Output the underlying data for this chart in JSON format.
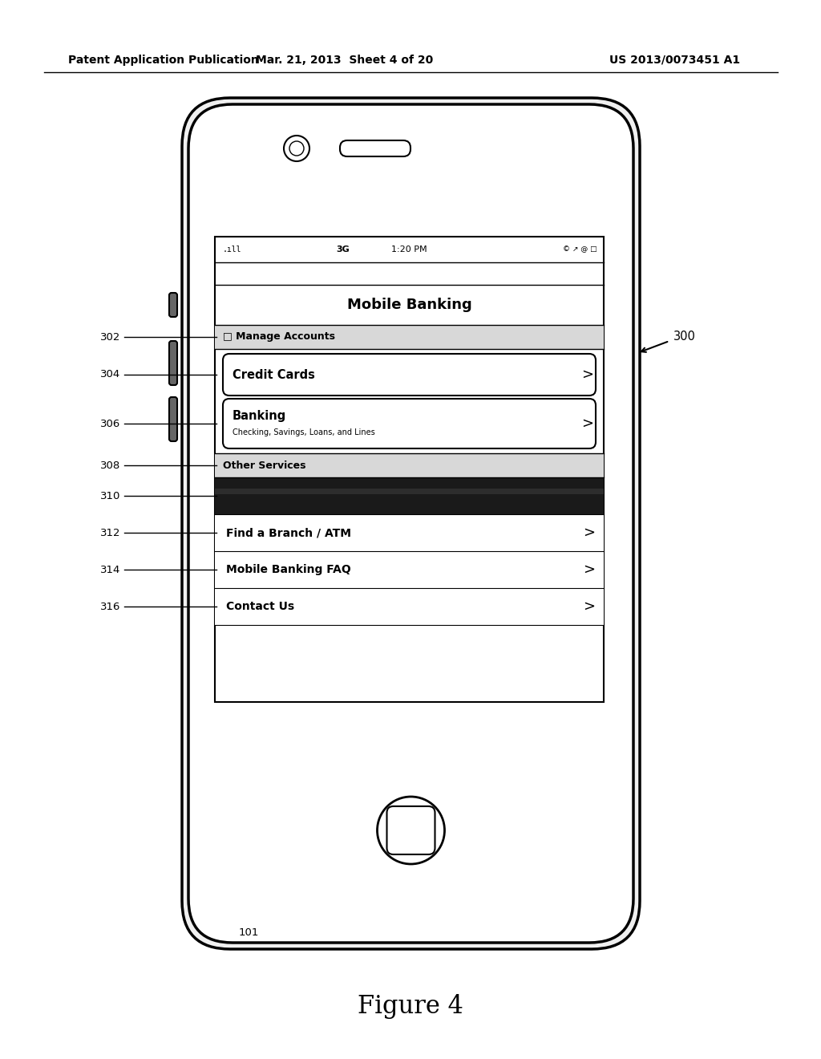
{
  "bg_color": "#ffffff",
  "title_text": "Figure 4",
  "header_left": "Patent Application Publication",
  "header_mid": "Mar. 21, 2013  Sheet 4 of 20",
  "header_right": "US 2013/0073451 A1",
  "app_title": "Mobile Banking",
  "section1_label": "□ Manage Accounts",
  "section2_label": "Other Services",
  "menu_items2_labels": [
    "Find a Branch / ATM",
    "Mobile Banking FAQ",
    "Contact Us"
  ],
  "annot_labels": [
    "302",
    "304",
    "306",
    "308",
    "310",
    "312",
    "314",
    "316"
  ]
}
